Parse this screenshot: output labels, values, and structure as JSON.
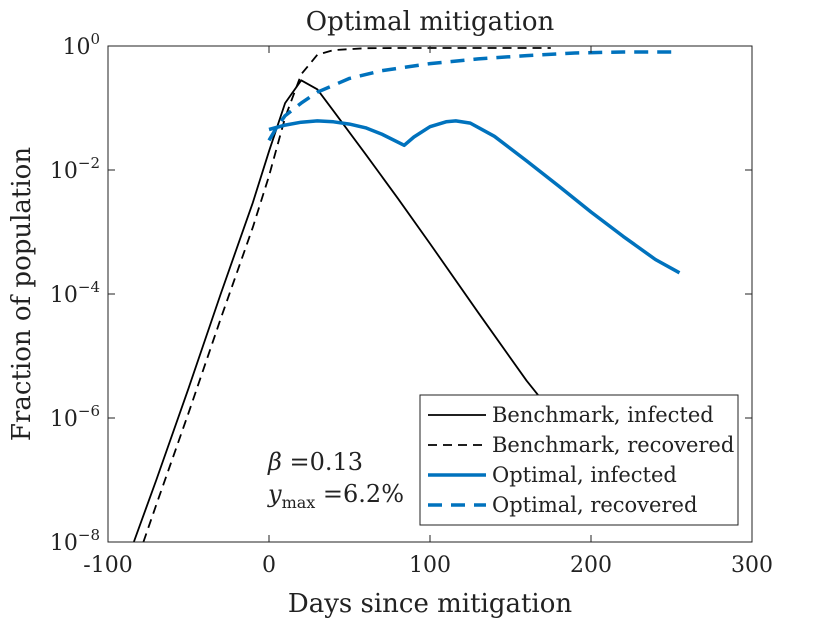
{
  "chart_data": {
    "type": "line",
    "title": "Optimal mitigation",
    "xlabel": "Days since mitigation",
    "ylabel": "Fraction of population",
    "xlim": [
      -100,
      300
    ],
    "ylim": [
      1e-08,
      1
    ],
    "yscale": "log",
    "xticks": [
      -100,
      0,
      100,
      200,
      300
    ],
    "xtick_labels": [
      "-100",
      "0",
      "100",
      "200",
      "300"
    ],
    "yticks": [
      1e-08,
      1e-06,
      0.0001,
      0.01,
      1
    ],
    "ytick_labels": [
      {
        "base": "10",
        "exp": "−8"
      },
      {
        "base": "10",
        "exp": "−6"
      },
      {
        "base": "10",
        "exp": "−4"
      },
      {
        "base": "10",
        "exp": "−2"
      },
      {
        "base": "10",
        "exp": "0"
      }
    ],
    "grid": false,
    "legend_position": "bottom-right",
    "series": [
      {
        "name": "Benchmark, infected",
        "color": "#000000",
        "style": "solid",
        "x": [
          -84,
          -70,
          -50,
          -30,
          -10,
          0,
          10,
          20,
          30,
          40,
          60,
          80,
          100,
          130,
          160,
          175
        ],
        "y": [
          1e-08,
          1e-07,
          3e-06,
          0.0001,
          0.003,
          0.02,
          0.12,
          0.28,
          0.2,
          0.09,
          0.018,
          0.0035,
          0.00065,
          5e-05,
          4e-06,
          1.3e-06
        ]
      },
      {
        "name": "Benchmark, recovered",
        "color": "#000000",
        "style": "dashed",
        "x": [
          -78,
          -70,
          -50,
          -30,
          -10,
          0,
          10,
          20,
          30,
          40,
          60,
          80,
          100,
          130,
          160,
          175
        ],
        "y": [
          1e-08,
          4e-08,
          1.2e-06,
          4e-05,
          0.0012,
          0.008,
          0.07,
          0.35,
          0.72,
          0.86,
          0.92,
          0.93,
          0.93,
          0.93,
          0.93,
          0.93
        ]
      },
      {
        "name": "Optimal, infected",
        "color": "#0072BD",
        "style": "solid",
        "x": [
          0,
          10,
          20,
          30,
          40,
          50,
          60,
          70,
          84,
          90,
          100,
          110,
          116,
          125,
          140,
          160,
          180,
          200,
          220,
          240,
          255
        ],
        "y": [
          0.045,
          0.053,
          0.059,
          0.062,
          0.06,
          0.055,
          0.048,
          0.038,
          0.025,
          0.034,
          0.05,
          0.06,
          0.062,
          0.057,
          0.035,
          0.014,
          0.0055,
          0.0021,
          0.00085,
          0.00036,
          0.00022
        ]
      },
      {
        "name": "Optimal, recovered",
        "color": "#0072BD",
        "style": "dashed",
        "x": [
          0,
          5,
          10,
          20,
          30,
          50,
          70,
          100,
          130,
          160,
          190,
          220,
          255
        ],
        "y": [
          0.03,
          0.05,
          0.075,
          0.12,
          0.18,
          0.3,
          0.4,
          0.52,
          0.62,
          0.7,
          0.77,
          0.8,
          0.8
        ]
      }
    ],
    "annotations": [
      {
        "parts": [
          "β",
          " =0.13"
        ]
      },
      {
        "parts": [
          "y",
          "max",
          " =6.2%"
        ]
      }
    ]
  }
}
